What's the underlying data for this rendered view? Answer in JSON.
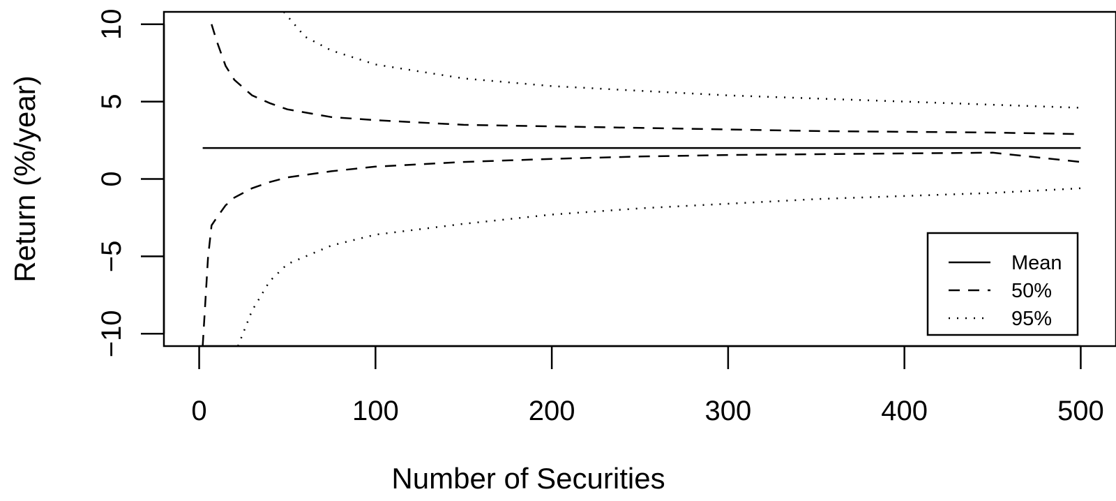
{
  "chart_data": {
    "type": "line",
    "title": "",
    "xlabel": "Number of Securities",
    "ylabel": "Return (%/year)",
    "xlim": [
      -20,
      520
    ],
    "ylim": [
      -10.8,
      10.8
    ],
    "x_ticks": [
      0,
      100,
      200,
      300,
      400,
      500
    ],
    "y_ticks": [
      -10,
      -5,
      0,
      5,
      10
    ],
    "grid": false,
    "legend_position": "bottom-right",
    "legend": [
      {
        "name": "Mean",
        "style": "solid"
      },
      {
        "name": "50%",
        "style": "dashed"
      },
      {
        "name": "95%",
        "style": "dotted"
      }
    ],
    "series": [
      {
        "name": "Mean",
        "style": "solid",
        "x": [
          2,
          500
        ],
        "y": [
          2.0,
          2.0
        ]
      },
      {
        "name": "50%",
        "style": "dashed",
        "x": [
          2,
          5,
          7,
          10,
          15,
          20,
          30,
          40,
          50,
          75,
          100,
          150,
          200,
          250,
          300,
          350,
          400,
          450,
          500
        ],
        "y": [
          -10.8,
          -5.1,
          -3.0,
          -2.5,
          -1.7,
          -1.2,
          -0.6,
          -0.2,
          0.1,
          0.5,
          0.8,
          1.1,
          1.3,
          1.45,
          1.55,
          1.6,
          1.65,
          1.7,
          1.1
        ]
      },
      {
        "name": "50%",
        "style": "dashed",
        "x": [
          7,
          10,
          15,
          20,
          30,
          40,
          50,
          75,
          100,
          150,
          200,
          250,
          300,
          350,
          400,
          450,
          500
        ],
        "y": [
          10.0,
          8.9,
          7.3,
          6.4,
          5.4,
          4.9,
          4.5,
          4.0,
          3.8,
          3.5,
          3.4,
          3.3,
          3.2,
          3.1,
          3.05,
          3.0,
          2.9
        ]
      },
      {
        "name": "95%",
        "style": "dotted",
        "x": [
          22,
          30,
          40,
          50,
          75,
          100,
          150,
          200,
          250,
          300,
          350,
          400,
          450,
          500
        ],
        "y": [
          -10.8,
          -8.5,
          -6.6,
          -5.5,
          -4.3,
          -3.6,
          -2.9,
          -2.3,
          -1.9,
          -1.6,
          -1.3,
          -1.1,
          -0.9,
          -0.6
        ]
      },
      {
        "name": "95%",
        "style": "dotted",
        "x": [
          48,
          60,
          75,
          100,
          150,
          200,
          250,
          300,
          350,
          400,
          450,
          500
        ],
        "y": [
          10.8,
          9.2,
          8.3,
          7.4,
          6.5,
          6.0,
          5.7,
          5.4,
          5.2,
          5.0,
          4.8,
          4.6
        ]
      }
    ]
  }
}
